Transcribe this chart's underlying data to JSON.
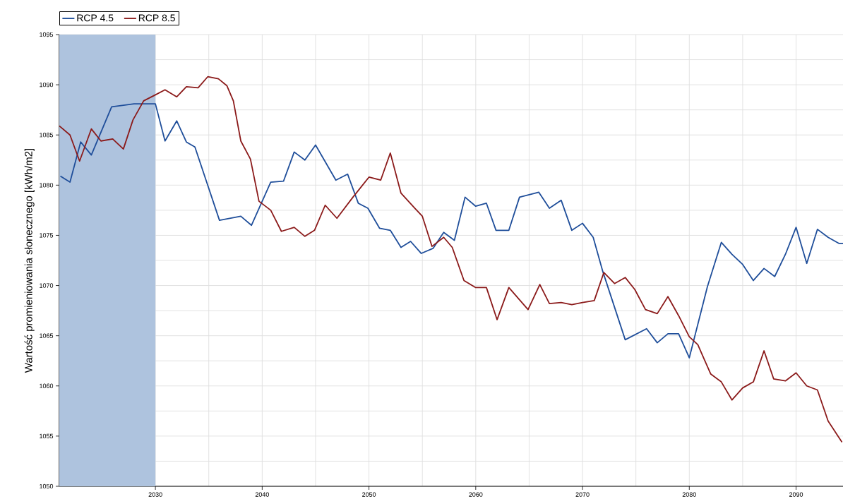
{
  "chart_data": {
    "type": "line",
    "ylabel": "Wartość promieniowania słonecznego [kWh/m2]",
    "xlim": [
      2021,
      2094.4
    ],
    "ylim": [
      1050,
      1095
    ],
    "xticks": [
      2030,
      2040,
      2050,
      2060,
      2070,
      2080,
      2090
    ],
    "yticks": [
      1050,
      1055,
      1060,
      1065,
      1070,
      1075,
      1080,
      1085,
      1090,
      1095
    ],
    "grid": true,
    "legend": "top left",
    "marker": "none",
    "line_style": "solid",
    "bands": [
      {
        "axis": "x",
        "from": 2021,
        "to": 2030,
        "color": "#aec3de"
      }
    ],
    "series": [
      {
        "name": "RCP 4.5",
        "color": "#1f4e9a",
        "x": [
          2021.1,
          2022,
          2023,
          2024,
          2025.9,
          2028,
          2030,
          2030.9,
          2032,
          2032.9,
          2033.7,
          2036,
          2038,
          2039,
          2040.8,
          2042,
          2043,
          2044,
          2045,
          2046.9,
          2048,
          2049,
          2049.9,
          2051,
          2052,
          2053,
          2053.9,
          2054.9,
          2056,
          2057,
          2058,
          2059,
          2060,
          2061,
          2061.9,
          2063.1,
          2064.1,
          2065.9,
          2066.9,
          2068,
          2069,
          2070,
          2071,
          2071.9,
          2074,
          2076,
          2077,
          2078,
          2079,
          2080,
          2081.7,
          2083,
          2084,
          2085,
          2086,
          2087,
          2088,
          2089,
          2090,
          2091,
          2092,
          2093,
          2094,
          2094.4
        ],
        "values": [
          1080.9,
          1080.3,
          1084.3,
          1083.0,
          1087.8,
          1088.1,
          1088.1,
          1084.4,
          1086.4,
          1084.3,
          1083.8,
          1076.5,
          1076.9,
          1076.0,
          1080.3,
          1080.4,
          1083.3,
          1082.5,
          1084.0,
          1080.5,
          1081.1,
          1078.2,
          1077.7,
          1075.7,
          1075.5,
          1073.8,
          1074.4,
          1073.2,
          1073.7,
          1075.3,
          1074.5,
          1078.8,
          1077.9,
          1078.2,
          1075.5,
          1075.5,
          1078.8,
          1079.3,
          1077.7,
          1078.5,
          1075.5,
          1076.2,
          1074.8,
          1071.4,
          1064.6,
          1065.7,
          1064.3,
          1065.2,
          1065.2,
          1062.8,
          1069.9,
          1074.3,
          1073.1,
          1072.1,
          1070.5,
          1071.7,
          1070.9,
          1073.1,
          1075.8,
          1072.2,
          1075.6,
          1074.8,
          1074.2,
          1074.2
        ]
      },
      {
        "name": "RCP 8.5",
        "color": "#8b1a1a",
        "x": [
          2021,
          2022,
          2022.9,
          2024,
          2024.9,
          2026,
          2027,
          2027.9,
          2028.9,
          2030,
          2030.9,
          2032,
          2032.9,
          2034,
          2034.9,
          2035.9,
          2036.7,
          2037.3,
          2038,
          2038.9,
          2039.7,
          2040.8,
          2041.8,
          2043,
          2044,
          2044.9,
          2045.9,
          2047,
          2048.5,
          2050,
          2051.1,
          2052,
          2053,
          2054.3,
          2055,
          2055.9,
          2057,
          2057.8,
          2058.9,
          2060,
          2061,
          2062,
          2063.1,
          2064.9,
          2066,
          2066.9,
          2068,
          2069,
          2070,
          2071.1,
          2072,
          2073,
          2074,
          2074.9,
          2075.9,
          2077,
          2078,
          2079,
          2080,
          2080.8,
          2082,
          2083,
          2084,
          2085,
          2086,
          2087,
          2087.9,
          2089,
          2090,
          2091,
          2092,
          2093,
          2094.3
        ],
        "values": [
          1085.9,
          1085.0,
          1082.4,
          1085.6,
          1084.4,
          1084.6,
          1083.6,
          1086.5,
          1088.4,
          1089.0,
          1089.5,
          1088.8,
          1089.8,
          1089.7,
          1090.8,
          1090.6,
          1089.9,
          1088.4,
          1084.4,
          1082.6,
          1078.4,
          1077.5,
          1075.4,
          1075.8,
          1074.9,
          1075.5,
          1078.0,
          1076.7,
          1078.8,
          1080.8,
          1080.5,
          1083.2,
          1079.2,
          1077.7,
          1076.9,
          1073.9,
          1074.8,
          1073.8,
          1070.5,
          1069.8,
          1069.8,
          1066.6,
          1069.8,
          1067.6,
          1070.1,
          1068.2,
          1068.3,
          1068.1,
          1068.3,
          1068.5,
          1071.3,
          1070.2,
          1070.8,
          1069.6,
          1067.6,
          1067.2,
          1068.9,
          1067.0,
          1064.9,
          1064.1,
          1061.2,
          1060.4,
          1058.6,
          1059.8,
          1060.4,
          1063.5,
          1060.7,
          1060.5,
          1061.3,
          1060.0,
          1059.6,
          1056.5,
          1054.4
        ]
      }
    ]
  }
}
